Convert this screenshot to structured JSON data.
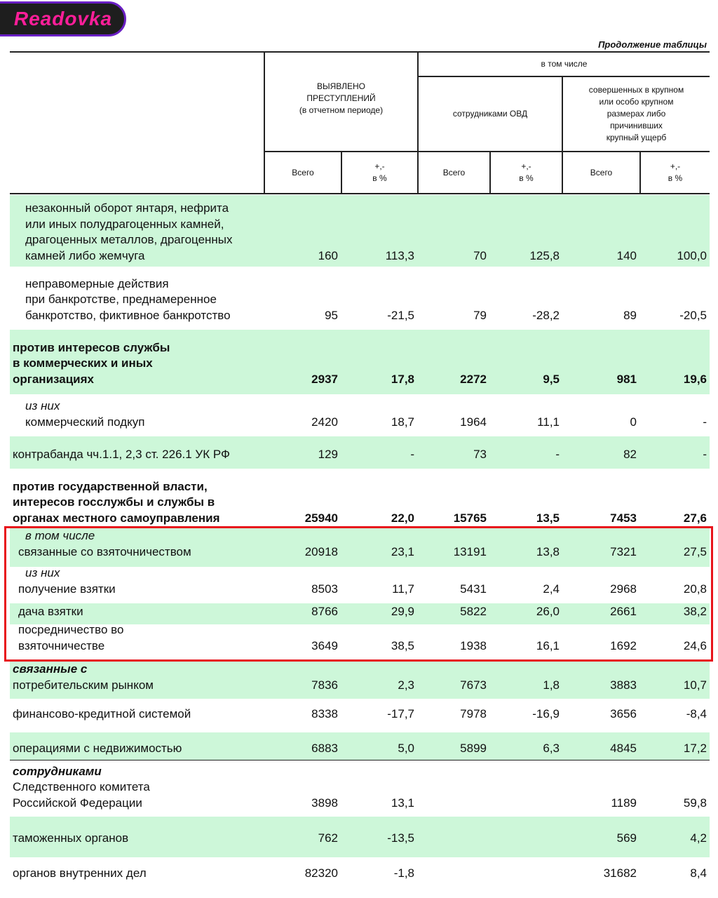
{
  "caption": "Продолжение таблицы",
  "header": {
    "detected": [
      "ВЫЯВЛЕНО",
      "ПРЕСТУПЛЕНИЙ",
      "(в отчетном периоде)"
    ],
    "including": "в том числе",
    "ovd": "сотрудниками ОВД",
    "large": [
      "совершенных в крупном",
      "или особо крупном",
      "размерах либо",
      "причинивших",
      "крупный ущерб"
    ],
    "total": "Всего",
    "pct": [
      "+,-",
      "в %"
    ]
  },
  "rows": [
    {
      "label": [
        {
          "t": "незаконный оборот янтаря, нефрита",
          "s": "ind"
        },
        {
          "t": "или иных полудрагоценных камней,",
          "s": "ind"
        },
        {
          "t": "драгоценных металлов, драгоценных",
          "s": "ind"
        },
        {
          "t": "камней либо жемчуга",
          "s": "ind"
        }
      ],
      "values": [
        "160",
        "113,3",
        "70",
        "125,8",
        "140",
        "100,0"
      ],
      "green": true
    },
    {
      "label": [
        {
          "t": "неправомерные действия",
          "s": "ind"
        },
        {
          "t": "при банкротстве, преднамеренное",
          "s": "ind"
        },
        {
          "t": "банкротство, фиктивное банкротство",
          "s": "ind"
        }
      ],
      "values": [
        "95",
        "-21,5",
        "79",
        "-28,2",
        "89",
        "-20,5"
      ],
      "green": false
    },
    {
      "label": [
        {
          "t": "против интересов службы",
          "s": "bd"
        },
        {
          "t": "в коммерческих и иных",
          "s": "bd"
        },
        {
          "t": "организациях",
          "s": "bd"
        }
      ],
      "values": [
        "2937",
        "17,8",
        "2272",
        "9,5",
        "981",
        "19,6"
      ],
      "green": true,
      "bold": true
    },
    {
      "label": [
        {
          "t": "из них",
          "s": "it ind"
        },
        {
          "t": "коммерческий подкуп",
          "s": "ind"
        }
      ],
      "values": [
        "2420",
        "18,7",
        "1964",
        "11,1",
        "0",
        "-"
      ],
      "green": false
    },
    {
      "label": [
        {
          "t": "контрабанда чч.1.1, 2,3 ст. 226.1 УК РФ",
          "s": ""
        }
      ],
      "values": [
        "129",
        "-",
        "73",
        "-",
        "82",
        "-"
      ],
      "green": true
    },
    {
      "label": [
        {
          "t": "против государственной власти,",
          "s": "bd"
        },
        {
          "t": "интересов госслужбы и службы в",
          "s": "bd"
        },
        {
          "t": "органах местного самоуправления",
          "s": "bd"
        }
      ],
      "values": [
        "25940",
        "22,0",
        "15765",
        "13,5",
        "7453",
        "27,6"
      ],
      "green": false,
      "bold": true
    },
    {
      "label": [
        {
          "t": "в том числе",
          "s": "it ind"
        },
        {
          "t": "связанные со взяточничеством",
          "s": "ind2"
        }
      ],
      "values": [
        "20918",
        "23,1",
        "13191",
        "13,8",
        "7321",
        "27,5"
      ],
      "green": true
    },
    {
      "label": [
        {
          "t": "из них",
          "s": "it ind"
        },
        {
          "t": "получение взятки",
          "s": "ind2"
        }
      ],
      "values": [
        "8503",
        "11,7",
        "5431",
        "2,4",
        "2968",
        "20,8"
      ],
      "green": false
    },
    {
      "label": [
        {
          "t": "дача взятки",
          "s": "ind2"
        }
      ],
      "values": [
        "8766",
        "29,9",
        "5822",
        "26,0",
        "2661",
        "38,2"
      ],
      "green": true
    },
    {
      "label": [
        {
          "t": "посредничество во",
          "s": "ind2"
        },
        {
          "t": "взяточничестве",
          "s": "ind2"
        }
      ],
      "values": [
        "3649",
        "38,5",
        "1938",
        "16,1",
        "1692",
        "24,6"
      ],
      "green": false
    },
    {
      "label": [
        {
          "t": "связанные с",
          "s": "bd it"
        },
        {
          "t": "потребительским рынком",
          "s": ""
        }
      ],
      "values": [
        "7836",
        "2,3",
        "7673",
        "1,8",
        "3883",
        "10,7"
      ],
      "green": true
    },
    {
      "label": [
        {
          "t": "финансово-кредитной системой",
          "s": ""
        }
      ],
      "values": [
        "8338",
        "-17,7",
        "7978",
        "-16,9",
        "3656",
        "-8,4"
      ],
      "green": false
    },
    {
      "label": [
        {
          "t": "операциями с недвижимостью",
          "s": ""
        }
      ],
      "values": [
        "6883",
        "5,0",
        "5899",
        "6,3",
        "4845",
        "17,2"
      ],
      "green": true
    },
    {
      "label": [
        {
          "t": "сотрудниками",
          "s": "bd it"
        },
        {
          "t": "Следственного комитета",
          "s": ""
        },
        {
          "t": "Российской Федерации",
          "s": ""
        }
      ],
      "values": [
        "3898",
        "13,1",
        "",
        "",
        "1189",
        "59,8"
      ],
      "green": false
    },
    {
      "label": [
        {
          "t": "таможенных органов",
          "s": ""
        }
      ],
      "values": [
        "762",
        "-13,5",
        "",
        "",
        "569",
        "4,2"
      ],
      "green": true
    },
    {
      "label": [
        {
          "t": "органов внутренних дел",
          "s": ""
        }
      ],
      "values": [
        "82320",
        "-1,8",
        "",
        "",
        "31682",
        "8,4"
      ],
      "green": false
    }
  ],
  "logo": {
    "text": "Readovka"
  },
  "colors": {
    "row_green": "#cdf7d9",
    "highlight": "#e8141c"
  }
}
